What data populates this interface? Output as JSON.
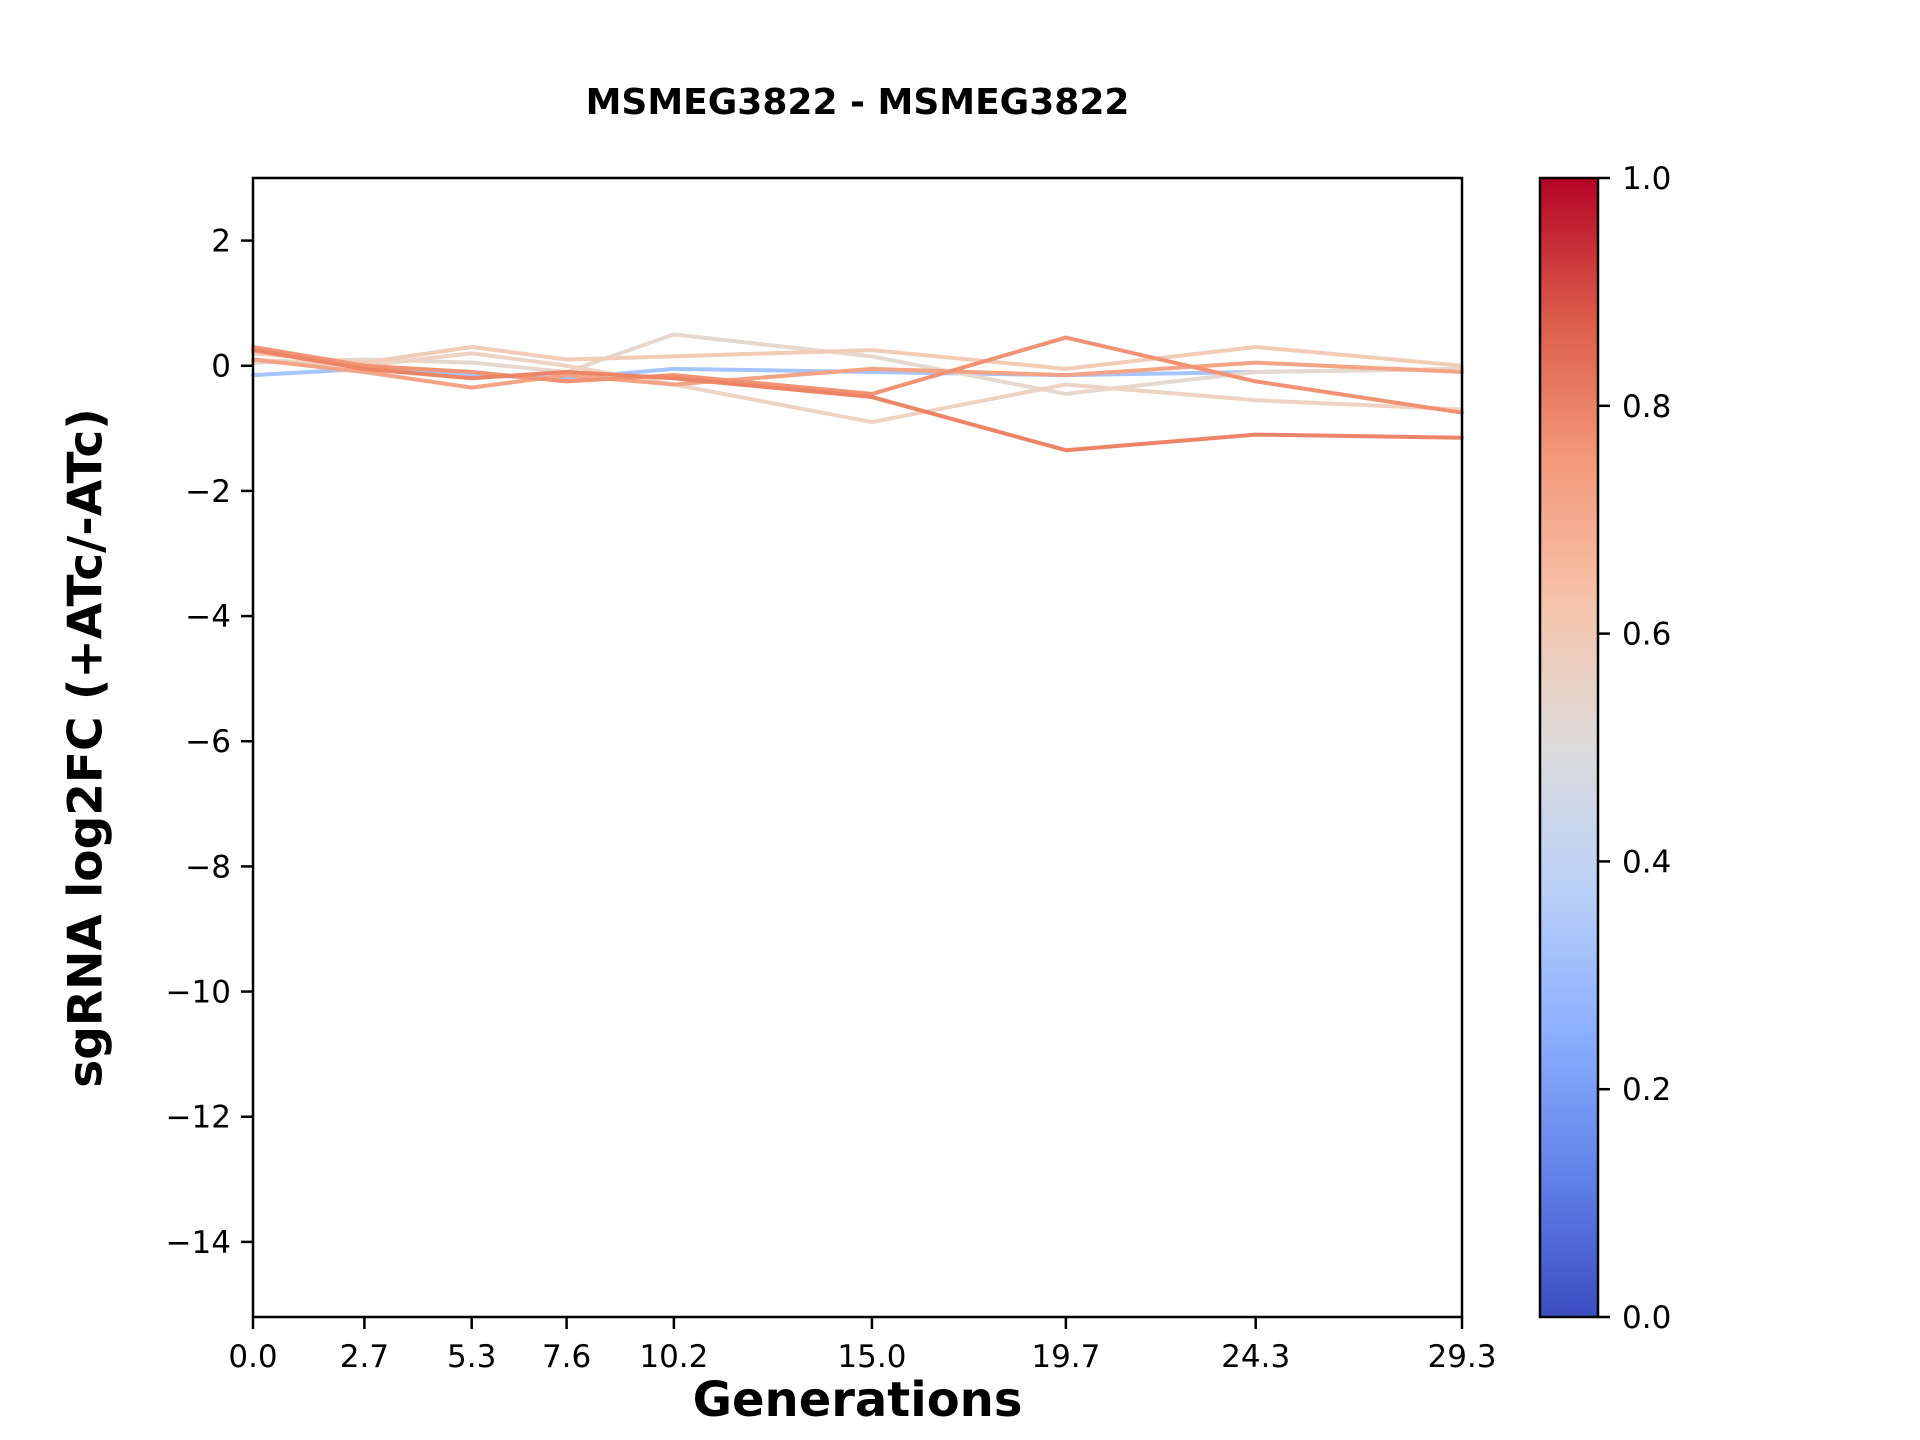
{
  "chart_data": {
    "type": "line",
    "title": "MSMEG3822 - MSMEG3822",
    "xlabel": "Generations",
    "ylabel": "sgRNA log2FC (+ATc/-ATc)",
    "x": [
      0.0,
      2.7,
      5.3,
      7.6,
      10.2,
      15.0,
      19.7,
      24.3,
      29.3
    ],
    "xlim": [
      0,
      29.3
    ],
    "ylim": [
      -15.2,
      3.0
    ],
    "xticks": [
      "0.0",
      "2.7",
      "5.3",
      "7.6",
      "10.2",
      "15.0",
      "19.7",
      "24.3",
      "29.3"
    ],
    "xtick_values": [
      0.0,
      2.7,
      5.3,
      7.6,
      10.2,
      15.0,
      19.7,
      24.3,
      29.3
    ],
    "yticks": [
      "2",
      "0",
      "−2",
      "−4",
      "−6",
      "−8",
      "−10",
      "−12",
      "−14"
    ],
    "ytick_values": [
      2,
      0,
      -2,
      -4,
      -6,
      -8,
      -10,
      -12,
      -14
    ],
    "grid": false,
    "background": "#ffffff",
    "series": [
      {
        "colormap_value": 0.4,
        "color": "#a6c4fe",
        "values": [
          -0.15,
          -0.05,
          -0.15,
          -0.2,
          -0.05,
          -0.1,
          -0.15,
          -0.1,
          -0.05
        ]
      },
      {
        "colormap_value": 0.53,
        "color": "#e6d8cf",
        "values": [
          0.05,
          0.1,
          0.05,
          -0.1,
          0.5,
          0.15,
          -0.45,
          -0.1,
          -0.05
        ]
      },
      {
        "colormap_value": 0.57,
        "color": "#eed3c3",
        "values": [
          0.1,
          0.0,
          0.2,
          0.0,
          -0.3,
          -0.9,
          -0.3,
          -0.55,
          -0.7
        ]
      },
      {
        "colormap_value": 0.6,
        "color": "#f2ccb6",
        "values": [
          0.2,
          0.05,
          0.3,
          0.1,
          0.15,
          0.25,
          -0.05,
          0.3,
          0.0
        ]
      },
      {
        "colormap_value": 0.72,
        "color": "#f4a385",
        "values": [
          0.1,
          -0.1,
          -0.35,
          -0.15,
          -0.3,
          -0.05,
          -0.15,
          0.05,
          -0.1
        ]
      },
      {
        "colormap_value": 0.76,
        "color": "#f19272",
        "values": [
          0.3,
          0.0,
          -0.1,
          -0.25,
          -0.15,
          -0.45,
          0.45,
          -0.25,
          -0.75
        ]
      },
      {
        "colormap_value": 0.79,
        "color": "#ee8466",
        "values": [
          0.25,
          -0.05,
          -0.2,
          -0.1,
          -0.2,
          -0.5,
          -1.35,
          -1.1,
          -1.15
        ]
      }
    ],
    "colorbar": {
      "colormap": "coolwarm",
      "range": [
        0.0,
        1.0
      ],
      "ticks": [
        "1.0",
        "0.8",
        "0.6",
        "0.4",
        "0.2",
        "0.0"
      ],
      "tick_values": [
        1.0,
        0.8,
        0.6,
        0.4,
        0.2,
        0.0
      ],
      "stops": [
        {
          "offset": "0%",
          "color": "#b40426"
        },
        {
          "offset": "12.5%",
          "color": "#dc5d4a"
        },
        {
          "offset": "25%",
          "color": "#f49a7b"
        },
        {
          "offset": "37.5%",
          "color": "#f6c4ab"
        },
        {
          "offset": "50%",
          "color": "#dddcdc"
        },
        {
          "offset": "62.5%",
          "color": "#bad0f8"
        },
        {
          "offset": "75%",
          "color": "#8caffe"
        },
        {
          "offset": "87.5%",
          "color": "#6282ea"
        },
        {
          "offset": "100%",
          "color": "#3b4cc0"
        }
      ]
    }
  }
}
